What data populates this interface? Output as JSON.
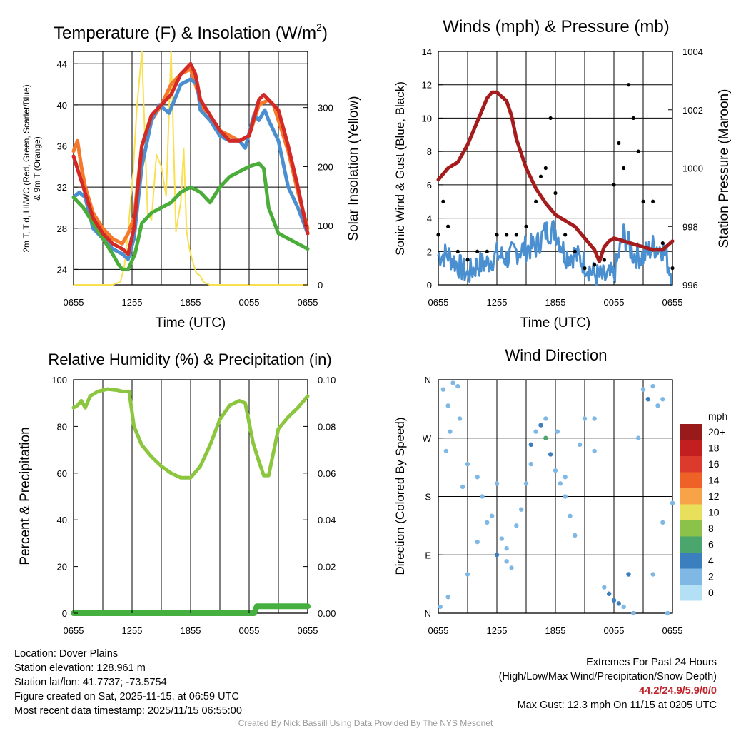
{
  "colors": {
    "red": "#d42a25",
    "orange": "#f5792a",
    "green": "#4aad3a",
    "blue": "#4a8fd0",
    "yellow": "#f8e050",
    "maroon": "#a41c1c",
    "black": "#000000",
    "rh": "#8cc63f",
    "precip": "#45b040"
  },
  "chart_data": [
    {
      "type": "line",
      "title": "Temperature (F) & Insolation (W/m²)",
      "title_main": "Temperature (F) & Insolation (W/m",
      "title_sup": "2",
      "title_end": ")",
      "xlabel": "Time (UTC)",
      "ylabel_left_1": "2m T, T d, HI/WC (Red, Green, Scarlet/Blue)",
      "ylabel_left_2": "& 9m T (Orange)",
      "ylabel_right": "Solar Insolation (Yellow)",
      "x_ticks": [
        "0655",
        "1255",
        "1855",
        "0055",
        "0655"
      ],
      "ylim": [
        22.5,
        45.2
      ],
      "y_ticks": [
        24,
        28,
        32,
        36,
        40,
        44
      ],
      "ylim_right": [
        0,
        395
      ],
      "y_ticks_right": [
        0,
        100,
        200,
        300
      ],
      "x_range": [
        0,
        24
      ],
      "series": [
        {
          "name": "9m T",
          "color": "orange",
          "x": [
            0,
            0.4,
            0.8,
            1.2,
            2,
            3,
            4,
            5,
            5.6,
            6.2,
            7,
            8,
            9,
            10,
            11,
            12,
            13,
            13.5,
            14,
            15,
            16,
            17,
            18,
            19,
            20,
            20.5,
            21,
            22,
            23,
            24
          ],
          "y": [
            35.5,
            36.5,
            34,
            32,
            29.5,
            28,
            27,
            26.5,
            27.5,
            29,
            36,
            38.5,
            40,
            42,
            43,
            43.5,
            40.5,
            39,
            38.5,
            37.5,
            37,
            36.5,
            37,
            40,
            40.5,
            40,
            38.5,
            35.5,
            31.5,
            28
          ]
        },
        {
          "name": "2m T",
          "color": "red",
          "x": [
            0,
            0.5,
            1,
            2,
            3,
            4,
            5,
            5.6,
            6.2,
            7,
            8,
            9,
            10,
            11,
            12,
            12.5,
            13,
            14,
            15,
            16,
            17,
            18,
            19,
            19.5,
            20,
            21,
            22,
            23,
            24
          ],
          "y": [
            35,
            33.5,
            32,
            29,
            27.5,
            26.5,
            26,
            25.5,
            28,
            36,
            39,
            40,
            41,
            43,
            44,
            43,
            40.5,
            39,
            37.5,
            36.5,
            36.5,
            37,
            40.5,
            41,
            40.5,
            39.5,
            36,
            32,
            27.5
          ]
        },
        {
          "name": "HI/WC",
          "color": "blue",
          "x": [
            0,
            0.6,
            1.2,
            2,
            3,
            4,
            5,
            5.6,
            6.2,
            7,
            8,
            8.8,
            9.8,
            11,
            12,
            12.7,
            13,
            14,
            15,
            16,
            17,
            17.6,
            18.5,
            19,
            19.6,
            20,
            21,
            22,
            23,
            24
          ],
          "y": [
            31,
            31.5,
            31,
            28,
            27,
            26,
            25.5,
            25,
            27,
            34,
            38.5,
            40,
            39.2,
            42,
            42.5,
            42,
            39.5,
            38.5,
            37,
            36.5,
            36.5,
            35.8,
            39,
            38.5,
            39.5,
            38.5,
            36.5,
            32,
            30,
            27.5
          ]
        },
        {
          "name": "Td",
          "color": "green",
          "x": [
            0,
            1,
            2,
            3,
            4,
            4.6,
            5,
            5.6,
            6.3,
            7,
            8,
            9,
            10,
            11,
            12,
            13,
            14,
            15,
            16,
            17,
            18,
            19,
            19.5,
            20,
            21,
            22,
            23,
            24
          ],
          "y": [
            31,
            30,
            28.5,
            27,
            25.5,
            24.5,
            24,
            24,
            25.5,
            28.5,
            29.5,
            30,
            30.5,
            31.5,
            32,
            31.5,
            30.5,
            32,
            33,
            33.5,
            34,
            34.3,
            33.8,
            30,
            27.5,
            27,
            26.5,
            26
          ]
        },
        {
          "name": "Solar Insolation",
          "color": "yellow",
          "axis": "right",
          "x": [
            0,
            4,
            4.8,
            5.2,
            5.6,
            6.1,
            6.5,
            7,
            7.6,
            8,
            8.5,
            9,
            9.5,
            10,
            10.5,
            11,
            11.3,
            11.6,
            11.9,
            12.2,
            12.6,
            13,
            13.3,
            13.7,
            14,
            24
          ],
          "y": [
            0,
            0,
            5,
            30,
            90,
            190,
            300,
            395,
            120,
            110,
            220,
            200,
            150,
            395,
            90,
            140,
            230,
            90,
            60,
            40,
            20,
            15,
            5,
            2,
            0,
            0
          ]
        }
      ]
    },
    {
      "type": "scatter+line",
      "title": "Winds (mph) & Pressure (mb)",
      "xlabel": "Time (UTC)",
      "ylabel_left": "Sonic Wind & Gust (Blue, Black)",
      "ylabel_right": "Station Pressure (Maroon)",
      "x_ticks": [
        "0655",
        "1255",
        "1855",
        "0055",
        "0655"
      ],
      "ylim": [
        0,
        14
      ],
      "y_ticks": [
        0,
        2,
        4,
        6,
        8,
        10,
        12,
        14
      ],
      "ylim_right": [
        996,
        1004
      ],
      "y_ticks_right": [
        996,
        998,
        1000,
        1002,
        1004
      ],
      "x_range": [
        0,
        24
      ],
      "series": [
        {
          "name": "Station Pressure",
          "color": "maroon",
          "axis": "right",
          "x": [
            0,
            0.5,
            1,
            2,
            3,
            4,
            5,
            5.5,
            6,
            7,
            7.5,
            8,
            9,
            10,
            11,
            12,
            13,
            14,
            15,
            16,
            16.5,
            17,
            17.5,
            18,
            19,
            20,
            21,
            22,
            23,
            24
          ],
          "y": [
            999.6,
            999.8,
            1000,
            1000.2,
            1000.8,
            1001.6,
            1002.4,
            1002.6,
            1002.6,
            1002.3,
            1001.8,
            1001,
            1000,
            999.3,
            998.8,
            998.4,
            998.2,
            998,
            997.6,
            997.2,
            996.8,
            997.3,
            997.5,
            997.6,
            997.5,
            997.4,
            997.3,
            997.2,
            997.2,
            997.5
          ]
        },
        {
          "name": "Sonic Wind",
          "color": "blue",
          "style": "noisy line",
          "x": [
            0,
            1,
            2,
            3,
            4,
            5,
            6,
            7,
            8,
            9,
            10,
            11,
            12,
            13,
            14,
            15,
            16,
            17,
            18,
            19,
            20,
            21,
            22,
            23,
            24
          ],
          "y": [
            1.8,
            1.8,
            1.2,
            0.6,
            1.2,
            1.3,
            1.8,
            1.6,
            2,
            2.2,
            2.3,
            3.2,
            3.3,
            1.8,
            1.8,
            1.3,
            0.6,
            0.4,
            0.6,
            3,
            1.8,
            1.7,
            2.3,
            2.2,
            0.5
          ]
        },
        {
          "name": "Gust",
          "color": "black",
          "style": "points",
          "x": [
            0,
            0.5,
            1,
            2,
            3,
            4,
            5,
            6,
            7,
            8,
            9,
            10,
            10.5,
            11,
            11.5,
            12,
            13,
            14,
            15,
            16,
            17,
            18,
            18.5,
            19,
            19.5,
            20,
            20.5,
            21,
            22,
            23,
            24
          ],
          "y": [
            3,
            5,
            3.5,
            2,
            1.5,
            2,
            2,
            3,
            3,
            3,
            3.5,
            5,
            6.5,
            7,
            10,
            5.5,
            3,
            2,
            1,
            1.2,
            1.5,
            6,
            8.5,
            7,
            12,
            10,
            8,
            5,
            5,
            2.5,
            1
          ]
        }
      ]
    },
    {
      "type": "line",
      "title": "Relative Humidity (%) & Precipitation (in)",
      "ylabel": "Percent & Precipitation",
      "x_ticks": [
        "0655",
        "1255",
        "1855",
        "0055",
        "0655"
      ],
      "ylim": [
        0,
        100
      ],
      "y_ticks": [
        0,
        20,
        40,
        60,
        80,
        100
      ],
      "ylim_right": [
        0,
        0.1
      ],
      "y_ticks_right": [
        "0.00",
        "0.02",
        "0.04",
        "0.06",
        "0.08",
        "0.10"
      ],
      "x_range": [
        0,
        24
      ],
      "series": [
        {
          "name": "Relative Humidity",
          "color": "rh",
          "x": [
            0,
            0.4,
            0.8,
            1.2,
            1.7,
            2.5,
            3.5,
            4.5,
            5,
            5.7,
            6.2,
            7,
            8,
            9,
            10,
            11,
            11.5,
            12,
            13,
            14,
            15,
            16,
            17,
            17.6,
            18.4,
            19,
            19.5,
            20,
            21,
            22,
            23,
            24
          ],
          "y": [
            88,
            89,
            91,
            88,
            93,
            95,
            96,
            95.5,
            95,
            95,
            80,
            72,
            67,
            63,
            60,
            58,
            58,
            58,
            63,
            72,
            83,
            89,
            91,
            90,
            73,
            65,
            59,
            59,
            79,
            84,
            88,
            93
          ]
        },
        {
          "name": "Precipitation",
          "color": "precip",
          "axis": "right",
          "x": [
            0,
            18.5,
            18.8,
            24
          ],
          "y": [
            0,
            0,
            0.003,
            0.003
          ]
        }
      ]
    },
    {
      "type": "scatter",
      "title": "Wind Direction",
      "ylabel": "Direction (Colored By Speed)",
      "x_ticks": [
        "0655",
        "1255",
        "1855",
        "0055",
        "0655"
      ],
      "y_ticks": [
        "N",
        "E",
        "S",
        "W",
        "N"
      ],
      "ylim": [
        0,
        360
      ],
      "x_range": [
        0,
        24
      ],
      "colorbar_title": "mph",
      "colorbar_labels": [
        "20+",
        "18",
        "16",
        "14",
        "12",
        "10",
        "8",
        "6",
        "4",
        "2",
        "0"
      ],
      "colorbar_colors": [
        "#991a1a",
        "#c41f20",
        "#dc3a2c",
        "#ef6227",
        "#f8a348",
        "#e8e05a",
        "#8bc249",
        "#4aa66d",
        "#3b7fbe",
        "#7fb8e4",
        "#b4e0f5"
      ],
      "points": [
        [
          0.5,
          345,
          1
        ],
        [
          1,
          320,
          1
        ],
        [
          1.5,
          355,
          2
        ],
        [
          2,
          350,
          1
        ],
        [
          2.2,
          300,
          1
        ],
        [
          1.2,
          280,
          2
        ],
        [
          0.8,
          250,
          1
        ],
        [
          2.5,
          195,
          1
        ],
        [
          3,
          230,
          1
        ],
        [
          4,
          210,
          1
        ],
        [
          4.5,
          180,
          2
        ],
        [
          5,
          140,
          1
        ],
        [
          5.5,
          150,
          2
        ],
        [
          6,
          200,
          1
        ],
        [
          6.5,
          115,
          2
        ],
        [
          7,
          80,
          2
        ],
        [
          7.5,
          70,
          1
        ],
        [
          8,
          135,
          1
        ],
        [
          8.5,
          160,
          2
        ],
        [
          9,
          200,
          1
        ],
        [
          9.5,
          230,
          2
        ],
        [
          10,
          280,
          2
        ],
        [
          10.5,
          290,
          3
        ],
        [
          11,
          270,
          6
        ],
        [
          11.5,
          245,
          3
        ],
        [
          12,
          220,
          2
        ],
        [
          12.5,
          200,
          1
        ],
        [
          13,
          180,
          2
        ],
        [
          13.5,
          150,
          1
        ],
        [
          14,
          120,
          1
        ],
        [
          14.5,
          260,
          1
        ],
        [
          15,
          300,
          2
        ],
        [
          16,
          250,
          1
        ],
        [
          17,
          40,
          2
        ],
        [
          17.5,
          30,
          3
        ],
        [
          18,
          20,
          4
        ],
        [
          18.5,
          15,
          3
        ],
        [
          19,
          10,
          2
        ],
        [
          19.5,
          60,
          3
        ],
        [
          20,
          0,
          2
        ],
        [
          21,
          345,
          2
        ],
        [
          21.5,
          330,
          3
        ],
        [
          22,
          350,
          1
        ],
        [
          22.5,
          320,
          1
        ],
        [
          23,
          140,
          1
        ],
        [
          23.5,
          0,
          1
        ],
        [
          24,
          170,
          2
        ],
        [
          0.2,
          10,
          2
        ],
        [
          1,
          25,
          2
        ],
        [
          3,
          60,
          1
        ],
        [
          4,
          110,
          2
        ],
        [
          6,
          90,
          3
        ],
        [
          7,
          100,
          2
        ],
        [
          9.5,
          260,
          4
        ],
        [
          11,
          300,
          2
        ],
        [
          12.2,
          280,
          1
        ],
        [
          13,
          210,
          1
        ],
        [
          16,
          300,
          1
        ],
        [
          20.5,
          270,
          1
        ],
        [
          22,
          60,
          1
        ],
        [
          23,
          330,
          1
        ]
      ]
    }
  ],
  "footer": {
    "location": "Location: Dover Plains",
    "elevation": "Station elevation: 128.961 m",
    "latlon": "Station lat/lon: 41.7737; -73.5754",
    "created": "Figure created on Sat, 2025-11-15, at 06:59 UTC",
    "recent": "Most recent data timestamp: 2025/11/15 06:55:00",
    "extremes_title": "Extremes For Past 24 Hours",
    "extremes_desc": "(High/Low/Max Wind/Precipitation/Snow Depth)",
    "extremes_values": "44.2/24.9/5.9/0/0",
    "max_gust": "Max Gust: 12.3 mph On 11/15 at 0205 UTC",
    "credit": "Created By Nick Bassill Using Data Provided By The NYS Mesonet"
  }
}
